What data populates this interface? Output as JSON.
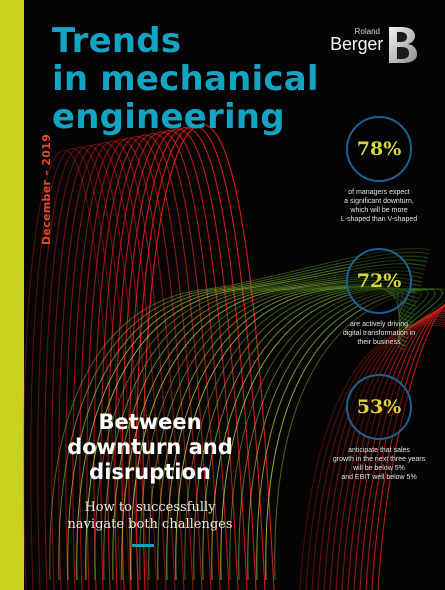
{
  "cover": {
    "title_lines": [
      "Trends",
      "in mechanical",
      "engineering"
    ],
    "date": "December – 2019",
    "subhead_lines": [
      "Between",
      "downturn and",
      "disruption"
    ],
    "tagline_lines": [
      "How to successfully",
      "navigate both challenges"
    ]
  },
  "logo": {
    "small": "Roland",
    "main": "Berger"
  },
  "stats": [
    {
      "value": "78%",
      "lines": [
        "of managers expect",
        "a significant downturn,",
        "which will be more",
        "L-shaped than V-shaped"
      ]
    },
    {
      "value": "72%",
      "lines": [
        "are actively driving",
        "digital transformation in",
        "their business"
      ]
    },
    {
      "value": "53%",
      "lines": [
        "anticipate that sales",
        "growth in the next three years",
        "will be below 5%",
        "and EBIT well below 5%"
      ]
    }
  ],
  "colors": {
    "accent_lime": "#c8d21e",
    "title_blue": "#13a4c3",
    "date_red": "#e34a2a",
    "stat_gold": "#d8d83b",
    "ring_blue": "#1c5f90"
  }
}
